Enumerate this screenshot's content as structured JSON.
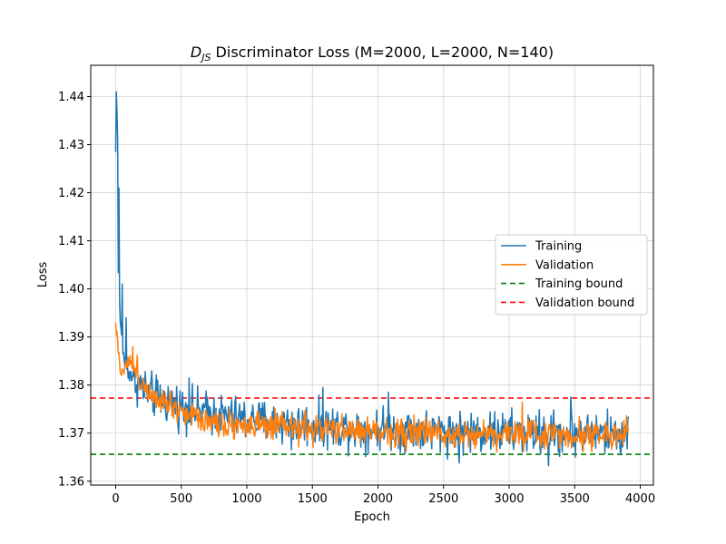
{
  "chart_data": {
    "type": "line",
    "title_prefix": "D",
    "title_subscript": "JS",
    "title_rest": " Discriminator Loss (M=2000, L=2000, N=140)",
    "xlabel": "Epoch",
    "ylabel": "Loss",
    "xlim": [
      -190,
      4100
    ],
    "ylim": [
      1.3592,
      1.4465
    ],
    "xticks": [
      0,
      500,
      1000,
      1500,
      2000,
      2500,
      3000,
      3500,
      4000
    ],
    "yticks": [
      1.36,
      1.37,
      1.38,
      1.39,
      1.4,
      1.41,
      1.42,
      1.43,
      1.44
    ],
    "ytick_labels": [
      "1.36",
      "1.37",
      "1.38",
      "1.39",
      "1.40",
      "1.41",
      "1.42",
      "1.43",
      "1.44"
    ],
    "grid": true,
    "legend_position": "center-right",
    "series": [
      {
        "name": "Training",
        "color": "#1f77b4",
        "style": "solid",
        "x": [
          0,
          5,
          10,
          15,
          20,
          25,
          30,
          40,
          50,
          60,
          80,
          100,
          120,
          150,
          200,
          250,
          300,
          400,
          500,
          600,
          700,
          800,
          900,
          1000,
          1200,
          1400,
          1600,
          1800,
          2000,
          2200,
          2400,
          2600,
          2800,
          3000,
          3200,
          3400,
          3600,
          3800,
          3910
        ],
        "y": [
          1.428,
          1.441,
          1.423,
          1.412,
          1.404,
          1.4,
          1.396,
          1.391,
          1.388,
          1.386,
          1.384,
          1.383,
          1.382,
          1.381,
          1.3795,
          1.3785,
          1.3775,
          1.3765,
          1.3755,
          1.3748,
          1.3742,
          1.3737,
          1.3732,
          1.3728,
          1.3722,
          1.3718,
          1.3714,
          1.3711,
          1.3709,
          1.3707,
          1.3705,
          1.3703,
          1.3702,
          1.3701,
          1.37,
          1.3699,
          1.3699,
          1.3698,
          1.3698
        ],
        "noise_amplitude": 0.0055,
        "spikes": [
          {
            "x": 3,
            "y": 1.441
          },
          {
            "x": 8,
            "y": 1.437
          },
          {
            "x": 14,
            "y": 1.431
          },
          {
            "x": 24,
            "y": 1.421
          },
          {
            "x": 48,
            "y": 1.401
          },
          {
            "x": 80,
            "y": 1.394
          },
          {
            "x": 560,
            "y": 1.3815
          },
          {
            "x": 1340,
            "y": 1.3665
          },
          {
            "x": 1580,
            "y": 1.3795
          },
          {
            "x": 2080,
            "y": 1.3785
          },
          {
            "x": 2620,
            "y": 1.3638
          },
          {
            "x": 3300,
            "y": 1.3632
          },
          {
            "x": 3470,
            "y": 1.3775
          }
        ]
      },
      {
        "name": "Validation",
        "color": "#ff7f0e",
        "style": "solid",
        "x": [
          0,
          10,
          20,
          30,
          40,
          60,
          80,
          100,
          120,
          150,
          200,
          300,
          400,
          500,
          600,
          700,
          800,
          1000,
          1200,
          1400,
          1600,
          1800,
          2000,
          2200,
          2400,
          2600,
          2800,
          3000,
          3200,
          3400,
          3600,
          3800,
          3910
        ],
        "y": [
          1.39,
          1.3925,
          1.387,
          1.3835,
          1.383,
          1.3835,
          1.3845,
          1.385,
          1.3845,
          1.383,
          1.3805,
          1.378,
          1.3765,
          1.3748,
          1.3735,
          1.3728,
          1.3722,
          1.3716,
          1.3712,
          1.3709,
          1.3707,
          1.3705,
          1.3703,
          1.3702,
          1.3701,
          1.37,
          1.3699,
          1.3699,
          1.3698,
          1.3698,
          1.3698,
          1.3697,
          1.3697
        ],
        "noise_amplitude": 0.0038,
        "spikes": [
          {
            "x": 2,
            "y": 1.393
          },
          {
            "x": 130,
            "y": 1.388
          },
          {
            "x": 3100,
            "y": 1.3765
          }
        ]
      },
      {
        "name": "Training bound",
        "color": "#008000",
        "style": "dashed",
        "y": 1.3656
      },
      {
        "name": "Validation bound",
        "color": "#ff0000",
        "style": "dashed",
        "y": 1.3773
      }
    ]
  }
}
